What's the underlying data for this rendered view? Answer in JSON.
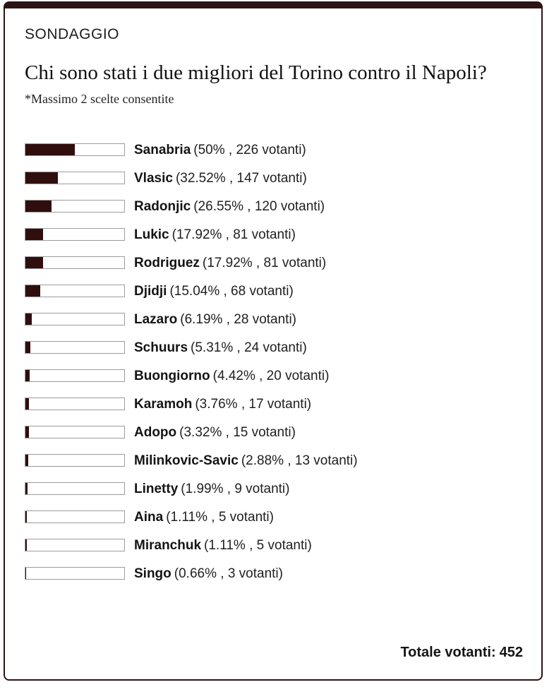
{
  "card": {
    "kicker": "SONDAGGIO",
    "title": "Chi sono stati i due migliori del Torino contro il Napoli?",
    "subtitle": "*Massimo 2 scelte consentite",
    "total_label": "Totale votanti:",
    "total_value": "452"
  },
  "labels": {
    "votes_word": "votanti"
  },
  "colors": {
    "accent": "#2b1316",
    "bar_fill": "#300e0e",
    "bar_border": "#9c9c9c"
  },
  "options": [
    {
      "name": "Sanabria",
      "percent": 50,
      "percent_label": "50%",
      "votes": 226
    },
    {
      "name": "Vlasic",
      "percent": 32.52,
      "percent_label": "32.52%",
      "votes": 147
    },
    {
      "name": "Radonjic",
      "percent": 26.55,
      "percent_label": "26.55%",
      "votes": 120
    },
    {
      "name": "Lukic",
      "percent": 17.92,
      "percent_label": "17.92%",
      "votes": 81
    },
    {
      "name": "Rodriguez",
      "percent": 17.92,
      "percent_label": "17.92%",
      "votes": 81
    },
    {
      "name": "Djidji",
      "percent": 15.04,
      "percent_label": "15.04%",
      "votes": 68
    },
    {
      "name": "Lazaro",
      "percent": 6.19,
      "percent_label": "6.19%",
      "votes": 28
    },
    {
      "name": "Schuurs",
      "percent": 5.31,
      "percent_label": "5.31%",
      "votes": 24
    },
    {
      "name": "Buongiorno",
      "percent": 4.42,
      "percent_label": "4.42%",
      "votes": 20
    },
    {
      "name": "Karamoh",
      "percent": 3.76,
      "percent_label": "3.76%",
      "votes": 17
    },
    {
      "name": "Adopo",
      "percent": 3.32,
      "percent_label": "3.32%",
      "votes": 15
    },
    {
      "name": "Milinkovic-Savic",
      "percent": 2.88,
      "percent_label": "2.88%",
      "votes": 13
    },
    {
      "name": "Linetty",
      "percent": 1.99,
      "percent_label": "1.99%",
      "votes": 9
    },
    {
      "name": "Aina",
      "percent": 1.11,
      "percent_label": "1.11%",
      "votes": 5
    },
    {
      "name": "Miranchuk",
      "percent": 1.11,
      "percent_label": "1.11%",
      "votes": 5
    },
    {
      "name": "Singo",
      "percent": 0.66,
      "percent_label": "0.66%",
      "votes": 3
    }
  ],
  "chart_data": {
    "type": "bar",
    "orientation": "horizontal",
    "title": "Chi sono stati i due migliori del Torino contro il Napoli?",
    "subtitle": "*Massimo 2 scelte consentite",
    "categories": [
      "Sanabria",
      "Vlasic",
      "Radonjic",
      "Lukic",
      "Rodriguez",
      "Djidji",
      "Lazaro",
      "Schuurs",
      "Buongiorno",
      "Karamoh",
      "Adopo",
      "Milinkovic-Savic",
      "Linetty",
      "Aina",
      "Miranchuk",
      "Singo"
    ],
    "series": [
      {
        "name": "percent",
        "values": [
          50,
          32.52,
          26.55,
          17.92,
          17.92,
          15.04,
          6.19,
          5.31,
          4.42,
          3.76,
          3.32,
          2.88,
          1.99,
          1.11,
          1.11,
          0.66
        ]
      },
      {
        "name": "votanti",
        "values": [
          226,
          147,
          120,
          81,
          81,
          68,
          28,
          24,
          20,
          17,
          15,
          13,
          9,
          5,
          5,
          3
        ]
      }
    ],
    "xlabel": "",
    "ylabel": "",
    "xlim": [
      0,
      100
    ],
    "grid": false,
    "legend_position": "none",
    "total_votes": 452
  }
}
